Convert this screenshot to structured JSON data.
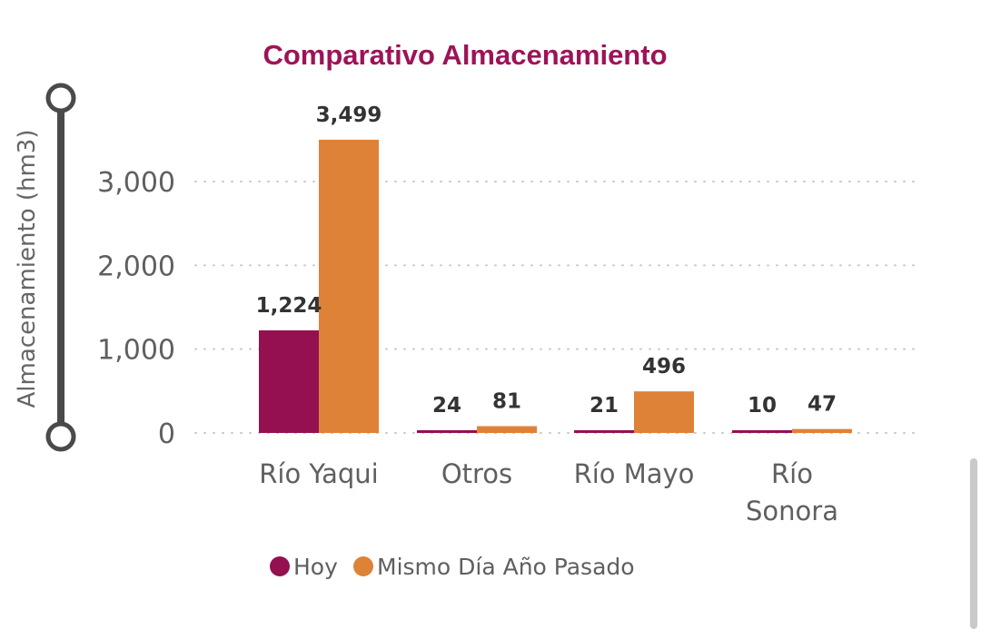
{
  "chart_data": {
    "type": "bar",
    "title": "Comparativo Almacenamiento",
    "ylabel": "Almacenamiento (hm3)",
    "xlabel": "",
    "categories": [
      [
        "Río Yaqui"
      ],
      [
        "Otros"
      ],
      [
        "Río Mayo"
      ],
      [
        "Río",
        "Sonora"
      ]
    ],
    "series": [
      {
        "name": "Hoy",
        "color": "#941051",
        "values": [
          1224,
          24,
          21,
          10
        ],
        "labels": [
          "1,224",
          "24",
          "21",
          "10"
        ]
      },
      {
        "name": "Mismo Día Año Pasado",
        "color": "#de8238",
        "values": [
          3499,
          81,
          496,
          47
        ],
        "labels": [
          "3,499",
          "81",
          "496",
          "47"
        ]
      }
    ],
    "ylim": [
      0,
      3800
    ],
    "yticks": [
      0,
      1000,
      2000,
      3000
    ],
    "ytick_labels": [
      "0",
      "1,000",
      "2,000",
      "3,000"
    ],
    "grid": true,
    "legend": "bottom"
  },
  "colors": {
    "title": "#9c1457",
    "axis_slider": "#4a4a4a",
    "scrollbar": "#c9c9c9"
  }
}
